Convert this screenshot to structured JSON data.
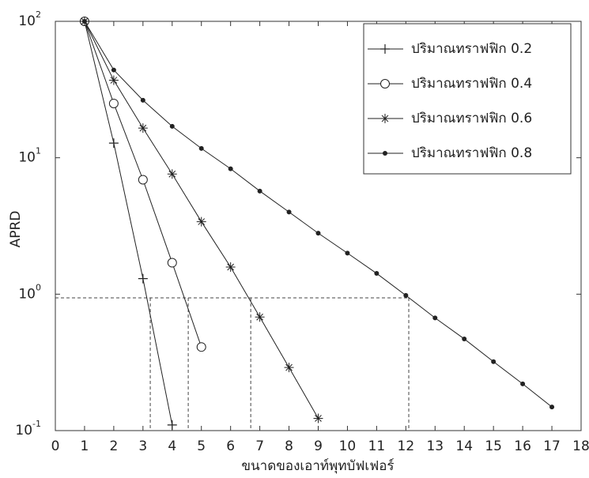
{
  "chart_data": {
    "type": "line",
    "y_scale": "log",
    "x_label": "ขนาดของเอาท์พุทบัฟเฟอร์",
    "y_label": "APRD",
    "xlim": [
      0,
      18
    ],
    "xticks": [
      0,
      1,
      2,
      3,
      4,
      5,
      6,
      7,
      8,
      9,
      10,
      11,
      12,
      13,
      14,
      15,
      16,
      17,
      18
    ],
    "ylim": [
      0.1,
      100
    ],
    "yticks": [
      {
        "value": 0.1,
        "label": "10",
        "exponent": "-1"
      },
      {
        "value": 1,
        "label": "10",
        "exponent": "0"
      },
      {
        "value": 10,
        "label": "10",
        "exponent": "1"
      },
      {
        "value": 100,
        "label": "10",
        "exponent": "2"
      }
    ],
    "legend_position": "upper right",
    "reference_y": 0.94,
    "reference_x": [
      3.25,
      4.55,
      6.69,
      12.1
    ],
    "series": [
      {
        "name": "ปริมาณทราฟฟิก 0.2",
        "color": "#222222",
        "marker": "+",
        "x": [
          1,
          2,
          3,
          4
        ],
        "values": [
          100,
          12.8,
          1.3,
          0.11
        ]
      },
      {
        "name": "ปริมาณทราฟฟิก 0.4",
        "color": "#222222",
        "marker": "o",
        "x": [
          1,
          2,
          3,
          4,
          5
        ],
        "values": [
          100,
          25,
          6.9,
          1.7,
          0.41
        ]
      },
      {
        "name": "ปริมาณทราฟฟิก 0.6",
        "color": "#222222",
        "marker": "*",
        "x": [
          1,
          2,
          3,
          4,
          5,
          6,
          7,
          8,
          9
        ],
        "values": [
          100,
          37,
          16.5,
          7.6,
          3.4,
          1.58,
          0.68,
          0.29,
          0.123
        ]
      },
      {
        "name": "ปริมาณทราฟฟิก 0.8",
        "color": "#222222",
        "marker": ".",
        "x": [
          1,
          2,
          3,
          4,
          5,
          6,
          7,
          8,
          9,
          10,
          11,
          12,
          13,
          14,
          15,
          16,
          17
        ],
        "values": [
          100,
          44,
          26.4,
          17,
          11.7,
          8.3,
          5.7,
          4.0,
          2.8,
          2.0,
          1.42,
          0.98,
          0.67,
          0.47,
          0.32,
          0.22,
          0.149
        ]
      }
    ]
  }
}
